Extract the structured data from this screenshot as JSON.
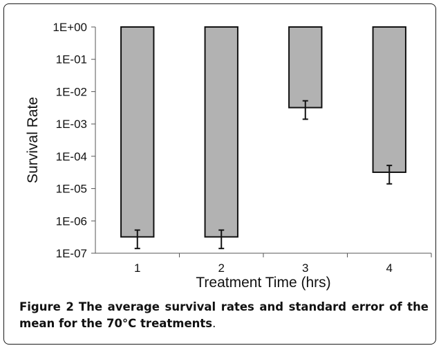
{
  "chart_data": {
    "type": "bar",
    "xlabel": "Treatment Time (hrs)",
    "ylabel": "Survival Rate",
    "y_scale": "log",
    "ylim": [
      1e-07,
      1
    ],
    "y_ticks": [
      "1E+00",
      "1E-01",
      "1E-02",
      "1E-03",
      "1E-04",
      "1E-05",
      "1E-06",
      "1E-07"
    ],
    "categories": [
      "1",
      "2",
      "3",
      "4"
    ],
    "values": [
      3.2e-07,
      3.2e-07,
      0.0032,
      3.2e-05
    ],
    "error_lower": [
      1.4e-07,
      1.4e-07,
      0.0014,
      1.4e-05
    ],
    "error_upper": [
      5.2e-07,
      5.2e-07,
      0.0052,
      5.2e-05
    ],
    "bar_color": "#b2b2b2",
    "grid": false
  },
  "caption": {
    "label": "Figure 2",
    "text": "The average survival rates and standard error of the mean for the 70°C treatments",
    "trailing": "."
  }
}
